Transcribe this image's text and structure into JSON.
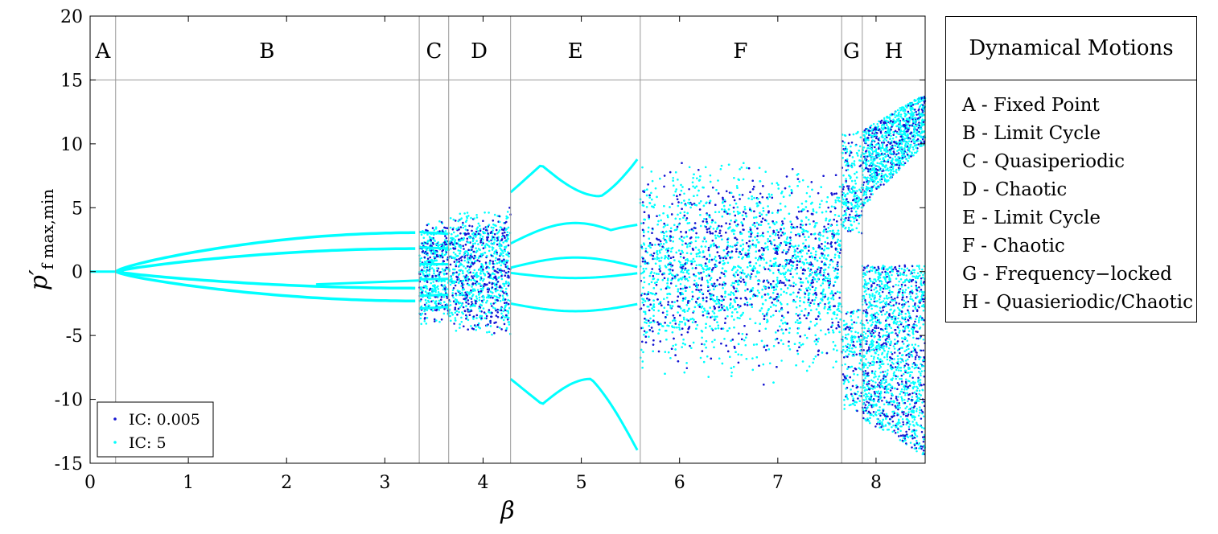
{
  "chart_data": {
    "type": "scatter",
    "title": "",
    "xlabel": "β",
    "ylabel": "p′",
    "ylabel_subscript": "f max,min",
    "xlim": [
      0,
      8.5
    ],
    "ylim": [
      -15,
      20
    ],
    "x_ticks": [
      0,
      1,
      2,
      3,
      4,
      5,
      6,
      7,
      8
    ],
    "y_ticks": [
      -15,
      -10,
      -5,
      0,
      5,
      10,
      15,
      20
    ],
    "grid": false,
    "header_band_y": 15,
    "region_boundaries": [
      0.26,
      3.35,
      3.65,
      4.28,
      5.6,
      7.65,
      7.86
    ],
    "regions": [
      {
        "label": "A",
        "x_center": 0.13
      },
      {
        "label": "B",
        "x_center": 1.8
      },
      {
        "label": "C",
        "x_center": 3.5
      },
      {
        "label": "D",
        "x_center": 3.96
      },
      {
        "label": "E",
        "x_center": 4.94
      },
      {
        "label": "F",
        "x_center": 6.62
      },
      {
        "label": "G",
        "x_center": 7.75
      },
      {
        "label": "H",
        "x_center": 8.18
      }
    ],
    "legend_position": "bottom-left",
    "series": [
      {
        "name": "IC: 0.005",
        "color": "#1414d2",
        "marker": "dot"
      },
      {
        "name": "IC: 5",
        "color": "#00ffff",
        "marker": "dot"
      }
    ],
    "branches": [
      {
        "from": 0.0,
        "to": 0.26,
        "y": [
          [
            0,
            0
          ]
        ]
      },
      {
        "from": 0.26,
        "to": 3.35,
        "y": [
          [
            0.1,
            3.05
          ],
          [
            0.05,
            1.8
          ],
          [
            -0.05,
            -1.3
          ],
          [
            -0.1,
            -2.3
          ]
        ]
      },
      {
        "from": 2.3,
        "to": 3.35,
        "y": [
          [
            -1.0,
            -0.6
          ]
        ]
      },
      {
        "from": 4.28,
        "to": 5.6,
        "y": [
          [
            6.2,
            8.3
          ],
          [
            2.2,
            4.2
          ],
          [
            0.3,
            1.2
          ],
          [
            -0.5,
            -0.6
          ],
          [
            -2.5,
            -2.5
          ],
          [
            -8.4,
            -12.8
          ]
        ]
      },
      {
        "from": 5.6,
        "to": 7.65,
        "y_range": [
          -12.5,
          8.5
        ]
      },
      {
        "from": 7.86,
        "to": 8.5,
        "y_range": [
          -15,
          14
        ]
      }
    ]
  },
  "legend": {
    "items": [
      {
        "label": "IC: 0.005",
        "color": "#1414d2"
      },
      {
        "label": "IC: 5",
        "color": "#00ffff"
      }
    ]
  },
  "motions": {
    "title": "Dynamical Motions",
    "items": [
      "A - Fixed Point",
      "B - Limit Cycle",
      "C - Quasiperiodic",
      "D - Chaotic",
      "E - Limit Cycle",
      "F - Chaotic",
      "G - Frequency−locked",
      "H - Quasieriodic/Chaotic"
    ]
  }
}
